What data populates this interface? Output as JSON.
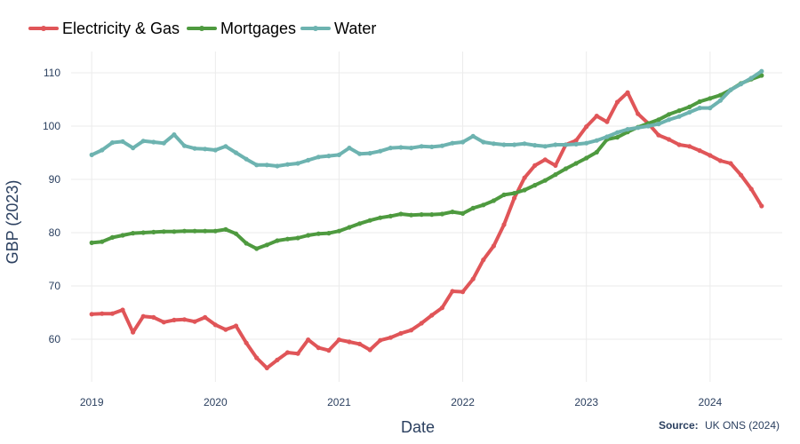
{
  "chart_data": {
    "type": "line",
    "xlabel": "Date",
    "ylabel": "GBP (2023)",
    "xlim": [
      "2018-11-01",
      "2024-08-01"
    ],
    "ylim": [
      52,
      114
    ],
    "x_ticks": [
      "2019",
      "2020",
      "2021",
      "2022",
      "2023",
      "2024"
    ],
    "y_ticks": [
      60,
      70,
      80,
      90,
      100,
      110
    ],
    "grid": true,
    "legend_position": "top-left",
    "source_label": "Source:",
    "source_value": "UK ONS (2024)",
    "x": [
      "2019-01",
      "2019-02",
      "2019-03",
      "2019-04",
      "2019-05",
      "2019-06",
      "2019-07",
      "2019-08",
      "2019-09",
      "2019-10",
      "2019-11",
      "2019-12",
      "2020-01",
      "2020-02",
      "2020-03",
      "2020-04",
      "2020-05",
      "2020-06",
      "2020-07",
      "2020-08",
      "2020-09",
      "2020-10",
      "2020-11",
      "2020-12",
      "2021-01",
      "2021-02",
      "2021-03",
      "2021-04",
      "2021-05",
      "2021-06",
      "2021-07",
      "2021-08",
      "2021-09",
      "2021-10",
      "2021-11",
      "2021-12",
      "2022-01",
      "2022-02",
      "2022-03",
      "2022-04",
      "2022-05",
      "2022-06",
      "2022-07",
      "2022-08",
      "2022-09",
      "2022-10",
      "2022-11",
      "2022-12",
      "2023-01",
      "2023-02",
      "2023-03",
      "2023-04",
      "2023-05",
      "2023-06",
      "2023-07",
      "2023-08",
      "2023-09",
      "2023-10",
      "2023-11",
      "2023-12",
      "2024-01",
      "2024-02",
      "2024-03",
      "2024-04",
      "2024-05",
      "2024-06"
    ],
    "series": [
      {
        "name": "Electricity & Gas",
        "color": "#e05558",
        "values": [
          64.7,
          64.8,
          64.8,
          65.5,
          61.3,
          64.3,
          64.1,
          63.2,
          63.6,
          63.7,
          63.3,
          64.1,
          62.7,
          61.8,
          62.5,
          59.3,
          56.5,
          54.6,
          56.1,
          57.5,
          57.3,
          59.9,
          58.4,
          57.9,
          59.9,
          59.5,
          59.1,
          58.0,
          59.8,
          60.3,
          61.1,
          61.7,
          63.0,
          64.5,
          65.9,
          69.0,
          68.9,
          71.3,
          74.9,
          77.5,
          81.5,
          86.5,
          90.3,
          92.6,
          93.7,
          92.6,
          96.5,
          97.3,
          99.9,
          101.9,
          100.8,
          104.5,
          106.3,
          102.3,
          100.5,
          98.3,
          97.5,
          96.5,
          96.2,
          95.4,
          94.5,
          93.5,
          93.0,
          90.8,
          88.2,
          85.0
        ]
      },
      {
        "name": "Mortgages",
        "color": "#4e9a3f",
        "values": [
          78.1,
          78.3,
          79.1,
          79.5,
          79.9,
          80.0,
          80.1,
          80.2,
          80.2,
          80.3,
          80.3,
          80.3,
          80.3,
          80.6,
          79.8,
          78.0,
          77.0,
          77.7,
          78.5,
          78.8,
          79.0,
          79.5,
          79.8,
          79.9,
          80.3,
          81.0,
          81.7,
          82.3,
          82.8,
          83.1,
          83.5,
          83.3,
          83.4,
          83.4,
          83.5,
          83.9,
          83.6,
          84.6,
          85.2,
          86.0,
          87.1,
          87.4,
          88.0,
          88.9,
          89.8,
          90.9,
          92.0,
          93.0,
          94.0,
          95.1,
          97.5,
          97.9,
          98.9,
          99.8,
          100.5,
          101.2,
          102.2,
          102.9,
          103.6,
          104.6,
          105.2,
          105.8,
          106.8,
          108.0,
          108.8,
          109.5
        ]
      },
      {
        "name": "Water",
        "color": "#6db3b0",
        "values": [
          94.6,
          95.5,
          96.9,
          97.1,
          95.9,
          97.2,
          97.0,
          96.8,
          98.4,
          96.3,
          95.8,
          95.7,
          95.5,
          96.2,
          95.0,
          93.8,
          92.7,
          92.7,
          92.5,
          92.8,
          93.0,
          93.6,
          94.2,
          94.4,
          94.6,
          95.9,
          94.8,
          94.9,
          95.3,
          95.9,
          96.0,
          95.9,
          96.2,
          96.1,
          96.3,
          96.8,
          97.0,
          98.1,
          97.0,
          96.7,
          96.5,
          96.5,
          96.7,
          96.4,
          96.2,
          96.5,
          96.5,
          96.6,
          96.8,
          97.3,
          98.0,
          98.8,
          99.4,
          99.7,
          100.0,
          100.4,
          101.2,
          101.8,
          102.6,
          103.4,
          103.4,
          104.8,
          106.8,
          107.9,
          109.0,
          110.3
        ]
      }
    ]
  }
}
